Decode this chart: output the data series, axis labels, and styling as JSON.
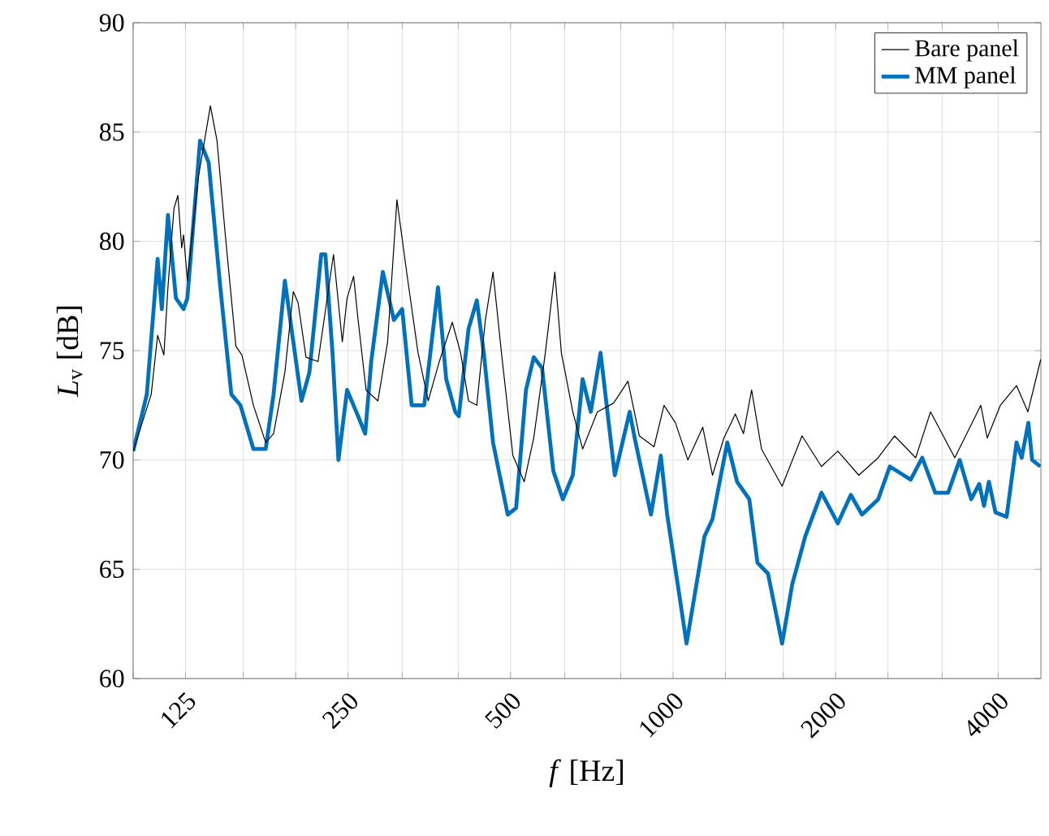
{
  "chart_data": {
    "type": "line",
    "xlabel": "*f* [Hz]",
    "ylabel": "*L*$_{v}$ [dB]",
    "log": "x",
    "grid": true,
    "legend": "top right",
    "marker": "none",
    "line_style": "solid",
    "xlim": [
      100,
      4800
    ],
    "ylim": [
      60,
      90
    ],
    "xticks": [
      {
        "value": 100,
        "label": null
      },
      125,
      {
        "value": 160,
        "label": null
      },
      {
        "value": 200,
        "label": null
      },
      250,
      {
        "value": 315,
        "label": null
      },
      {
        "value": 400,
        "label": null
      },
      500,
      {
        "value": 630,
        "label": null
      },
      {
        "value": 800,
        "label": null
      },
      1000,
      {
        "value": 1250,
        "label": null
      },
      {
        "value": 1600,
        "label": null
      },
      2000,
      {
        "value": 2500,
        "label": null
      },
      {
        "value": 3150,
        "label": null
      },
      4000
    ],
    "yticks": [
      60,
      65,
      70,
      75,
      80,
      85,
      90
    ],
    "series": [
      {
        "name": "Bare panel",
        "color": "#000000",
        "x": [
          100,
          108,
          111,
          114,
          116,
          119,
          121,
          123,
          124,
          126,
          132,
          139,
          143,
          148,
          155,
          159,
          167,
          176,
          182,
          191,
          198,
          202,
          209,
          220,
          235,
          244,
          249,
          256,
          261,
          270,
          284,
          296,
          308,
          321,
          337,
          352,
          369,
          390,
          404,
          418,
          433,
          449,
          464,
          481,
          505,
          530,
          552,
          580,
          604,
          621,
          652,
          680,
          724,
          776,
          825,
          866,
          922,
          962,
          1010,
          1065,
          1135,
          1183,
          1242,
          1304,
          1350,
          1398,
          1458,
          1592,
          1733,
          1883,
          2019,
          2208,
          2398,
          2571,
          2814,
          2998,
          3325,
          3715,
          3818,
          4038,
          4326,
          4541,
          4797
        ],
        "values": [
          70.4,
          73.0,
          75.7,
          74.8,
          77.9,
          81.5,
          82.1,
          79.7,
          80.3,
          78.2,
          82.9,
          86.2,
          84.6,
          80.4,
          75.2,
          74.8,
          72.5,
          70.8,
          71.2,
          74.0,
          77.7,
          77.2,
          74.7,
          74.5,
          79.4,
          75.4,
          77.4,
          78.4,
          76.4,
          73.2,
          72.7,
          75.4,
          81.9,
          78.6,
          74.9,
          72.7,
          74.5,
          76.3,
          74.9,
          72.7,
          72.5,
          76.4,
          78.6,
          74.9,
          70.2,
          69.0,
          71.0,
          74.9,
          78.6,
          74.9,
          72.2,
          70.5,
          72.2,
          72.6,
          73.6,
          71.1,
          70.6,
          72.5,
          71.7,
          70.0,
          71.5,
          69.3,
          71.0,
          72.1,
          71.2,
          73.2,
          70.5,
          68.8,
          71.1,
          69.7,
          70.4,
          69.3,
          70.1,
          71.1,
          70.1,
          72.2,
          70.1,
          72.5,
          71.0,
          72.5,
          73.4,
          72.2,
          74.6
        ]
      },
      {
        "name": "MM panel",
        "color": "#0072bd",
        "x": [
          100,
          106,
          111,
          113,
          116,
          120,
          124,
          126,
          133,
          138,
          145,
          152,
          158,
          167,
          176,
          182,
          191,
          198,
          205,
          212,
          223,
          227,
          234,
          240,
          249,
          261,
          269,
          276,
          290,
          304,
          315,
          328,
          346,
          367,
          380,
          395,
          401,
          418,
          433,
          446,
          464,
          494,
          512,
          534,
          552,
          572,
          600,
          625,
          652,
          680,
          704,
          734,
          780,
          831,
          849,
          910,
          949,
          975,
          1023,
          1059,
          1096,
          1143,
          1183,
          1260,
          1314,
          1384,
          1433,
          1499,
          1592,
          1662,
          1757,
          1883,
          2019,
          2134,
          2238,
          2398,
          2520,
          2755,
          2894,
          3059,
          3232,
          3395,
          3565,
          3690,
          3766,
          3846,
          3955,
          4147,
          4326,
          4422,
          4550,
          4624,
          4790
        ],
        "values": [
          70.4,
          73.0,
          79.2,
          76.9,
          81.2,
          77.4,
          76.9,
          77.4,
          84.6,
          83.6,
          77.9,
          73.0,
          72.5,
          70.5,
          70.5,
          73.0,
          78.2,
          75.4,
          72.7,
          74.0,
          79.4,
          79.4,
          74.9,
          70.0,
          73.2,
          72.0,
          71.2,
          74.5,
          78.6,
          76.4,
          76.9,
          72.5,
          72.5,
          77.9,
          73.7,
          72.2,
          72.0,
          76.0,
          77.3,
          74.9,
          70.8,
          67.5,
          67.8,
          73.2,
          74.7,
          74.2,
          69.5,
          68.2,
          69.3,
          73.7,
          72.2,
          74.9,
          69.3,
          72.2,
          71.0,
          67.5,
          70.2,
          67.5,
          64.1,
          61.6,
          63.8,
          66.5,
          67.3,
          70.8,
          69.0,
          68.2,
          65.3,
          64.8,
          61.6,
          64.3,
          66.5,
          68.5,
          67.1,
          68.4,
          67.5,
          68.2,
          69.7,
          69.1,
          70.1,
          68.5,
          68.5,
          70.0,
          68.2,
          68.9,
          67.9,
          69.0,
          67.6,
          67.4,
          70.8,
          70.1,
          71.7,
          70.0,
          69.7
        ]
      }
    ]
  }
}
